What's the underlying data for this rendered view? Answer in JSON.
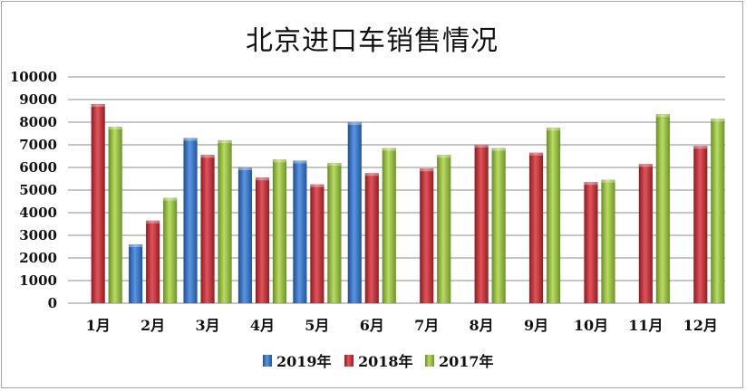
{
  "chart_data": {
    "type": "bar",
    "title": "北京进口车销售情况",
    "xlabel": "",
    "ylabel": "",
    "ylim": [
      0,
      10000
    ],
    "yticks": [
      0,
      1000,
      2000,
      3000,
      4000,
      5000,
      6000,
      7000,
      8000,
      9000,
      10000
    ],
    "grid": true,
    "legend_position": "bottom",
    "categories": [
      "1月",
      "2月",
      "3月",
      "4月",
      "5月",
      "6月",
      "7月",
      "8月",
      "9月",
      "10月",
      "11月",
      "12月"
    ],
    "series": [
      {
        "name": "2019年",
        "color": "#2f6fc6",
        "values": [
          null,
          2600,
          7300,
          6000,
          6300,
          8000,
          null,
          null,
          null,
          null,
          null,
          null
        ]
      },
      {
        "name": "2018年",
        "color": "#c0282d",
        "values": [
          8800,
          3650,
          6550,
          5550,
          5250,
          5750,
          5950,
          7000,
          6650,
          5350,
          6150,
          6950
        ]
      },
      {
        "name": "2017年",
        "color": "#93bf3b",
        "values": [
          7800,
          4650,
          7200,
          6350,
          6200,
          6850,
          6550,
          6850,
          7750,
          5450,
          8350,
          8150
        ]
      }
    ]
  }
}
